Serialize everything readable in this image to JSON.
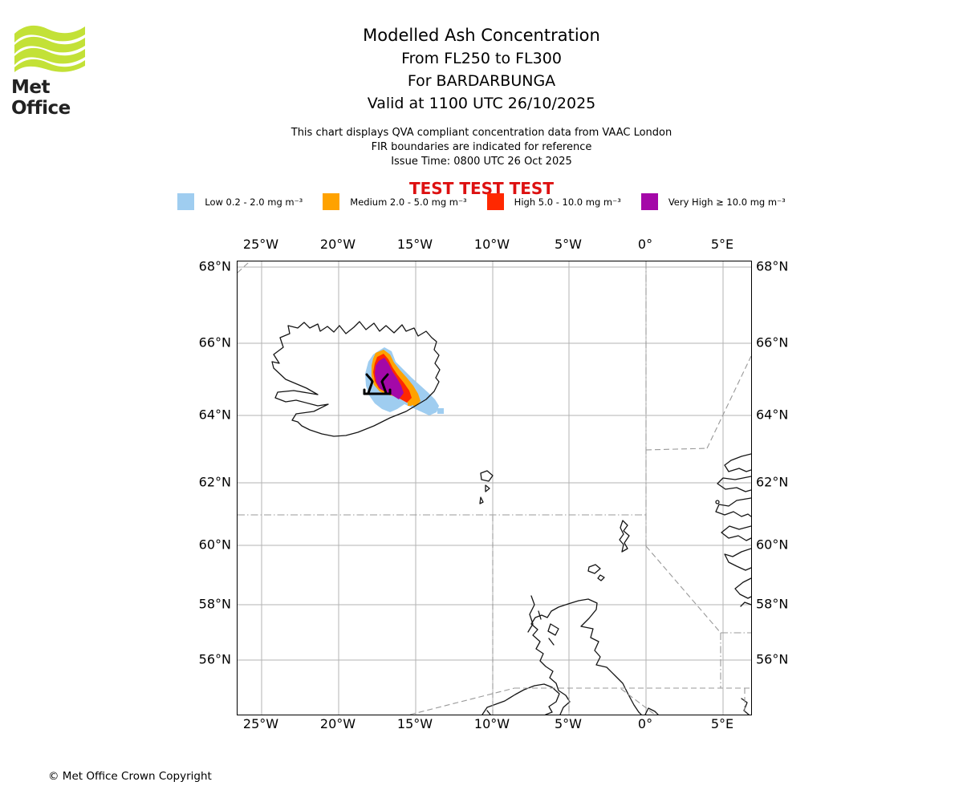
{
  "branding": {
    "logo_text": "Met Office",
    "logo_green": "#c3e137"
  },
  "header": {
    "title": "Modelled Ash Concentration",
    "subtitle_fl": "From FL250 to FL300",
    "subtitle_volcano": "For BARDARBUNGA",
    "subtitle_valid": "Valid at 1100 UTC 26/10/2025"
  },
  "notes": {
    "line1": "This chart displays QVA compliant concentration data from VAAC London",
    "line2": "FIR boundaries are indicated for reference",
    "line3": "Issue Time: 0800 UTC 26 Oct 2025"
  },
  "test_banner": "TEST TEST TEST",
  "legend": {
    "items": [
      {
        "name": "low",
        "label": "Low 0.2 - 2.0 mg m⁻³",
        "color": "#9fcdf0"
      },
      {
        "name": "medium",
        "label": "Medium 2.0 - 5.0 mg m⁻³",
        "color": "#ffa200"
      },
      {
        "name": "high",
        "label": "High 5.0 - 10.0 mg m⁻³",
        "color": "#ff2800"
      },
      {
        "name": "very_high",
        "label": "Very High ≥ 10.0 mg m⁻³",
        "color": "#a408a8"
      }
    ]
  },
  "map": {
    "lon_labels": [
      "25°W",
      "20°W",
      "15°W",
      "10°W",
      "5°W",
      "0°",
      "5°E"
    ],
    "lat_labels": [
      "68°N",
      "66°N",
      "64°N",
      "62°N",
      "60°N",
      "58°N",
      "56°N"
    ]
  },
  "footer": {
    "copyright": "© Met Office Crown Copyright"
  },
  "colors": {
    "test_red": "#dd1111",
    "grid": "#b3b3b3",
    "fir": "#999999",
    "coast": "#151515"
  }
}
